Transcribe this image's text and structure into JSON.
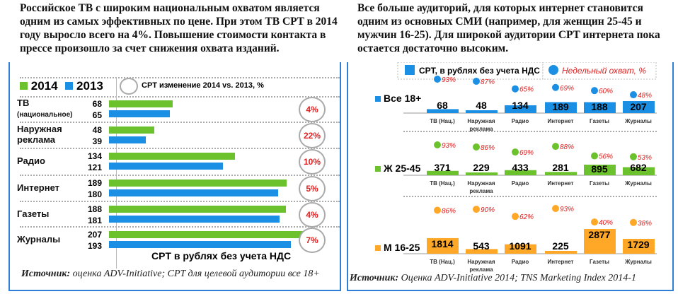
{
  "left_text": "Российское ТВ с широким национальным охватом является одним из самых эффективных по цене. При этом ТВ CPT в 2014 году выросло всего на 4%. Повышение стоимости контакта в прессе произошло за счет снижения охвата изданий.",
  "right_text": "Все больше аудиторий, для которых интернет становится одним из основных СМИ (например, для женщин 25-45 и мужчин 16-25). Для широкой аудитории CPT интернета пока остается достаточно высоким.",
  "colors": {
    "y2014": "#6cc22c",
    "y2013": "#1a8fe3",
    "all": "#1a8fe3",
    "women": "#6cc22c",
    "men": "#ffa726",
    "pct": "#e02020"
  },
  "chart_data": [
    {
      "type": "bar",
      "title": "CPT в рублях без учета НДС",
      "legend": [
        "2014",
        "2013"
      ],
      "circle_legend": "CPT изменение 2014 vs. 2013, %",
      "categories": [
        {
          "l1": "ТВ",
          "l2": "(национальное)"
        },
        {
          "l1": "Наружная",
          "l2": "реклама"
        },
        {
          "l1": "Радио",
          "l2": ""
        },
        {
          "l1": "Интернет",
          "l2": ""
        },
        {
          "l1": "Газеты",
          "l2": ""
        },
        {
          "l1": "Журналы",
          "l2": ""
        }
      ],
      "series": [
        {
          "name": "2014",
          "values": [
            68,
            48,
            134,
            189,
            188,
            207
          ]
        },
        {
          "name": "2013",
          "values": [
            65,
            39,
            121,
            180,
            181,
            193
          ]
        }
      ],
      "change": [
        "4%",
        "22%",
        "10%",
        "5%",
        "4%",
        "7%"
      ],
      "source_label": "Источник:",
      "source": " оценка ADV-Initiative; CPT для целевой аудитории все 18+"
    },
    {
      "type": "bar",
      "legend_bar": "CPT, в рублях без учета НДС",
      "legend_dot": "Недельный охват, %",
      "categories": [
        [
          "ТВ (Нац.)",
          ""
        ],
        [
          "Наружная",
          "реклама"
        ],
        [
          "Радио",
          ""
        ],
        [
          "Интернет",
          ""
        ],
        [
          "Газеты",
          ""
        ],
        [
          "Журналы",
          ""
        ]
      ],
      "series": [
        {
          "name": "Все 18+",
          "cpt": [
            68,
            48,
            134,
            189,
            188,
            207
          ],
          "reach": [
            93,
            87,
            65,
            69,
            60,
            48
          ]
        },
        {
          "name": "Ж 25-45",
          "cpt": [
            371,
            229,
            433,
            281,
            895,
            682
          ],
          "reach": [
            93,
            86,
            69,
            88,
            56,
            53
          ]
        },
        {
          "name": "М 16-25",
          "cpt": [
            1814,
            543,
            1091,
            225,
            2877,
            1729
          ],
          "reach": [
            86,
            90,
            62,
            93,
            40,
            38
          ]
        }
      ],
      "source_label": "Источник:",
      "source": " Оценка ADV-Initiative 2014; TNS Marketing Index 2014-1"
    }
  ]
}
